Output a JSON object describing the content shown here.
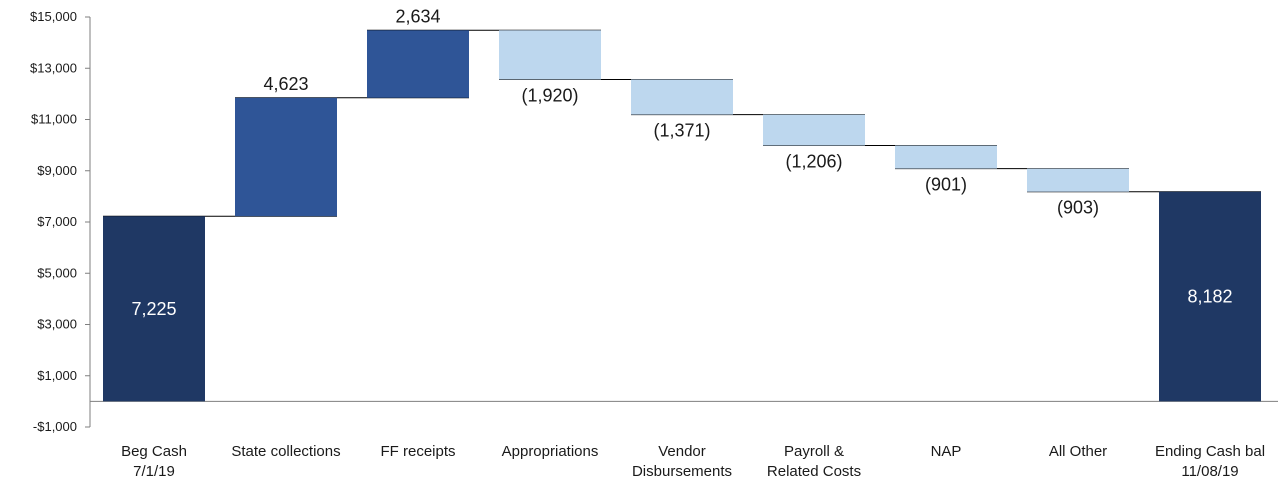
{
  "chart_data": {
    "type": "waterfall",
    "title": "",
    "ylim": [
      -1000,
      15000
    ],
    "y_ticks": [
      -1000,
      1000,
      3000,
      5000,
      7000,
      9000,
      11000,
      13000,
      15000
    ],
    "y_tick_labels": [
      "-$1,000",
      "$1,000",
      "$3,000",
      "$5,000",
      "$7,000",
      "$9,000",
      "$11,000",
      "$13,000",
      "$15,000"
    ],
    "categories": [
      [
        "Beg Cash",
        "7/1/19"
      ],
      [
        "State collections"
      ],
      [
        "FF receipts"
      ],
      [
        "Appropriations"
      ],
      [
        "Vendor",
        "Disbursements"
      ],
      [
        "Payroll &",
        "Related Costs"
      ],
      [
        "NAP"
      ],
      [
        "All Other"
      ],
      [
        "Ending Cash bal",
        "11/08/19"
      ]
    ],
    "steps": [
      {
        "kind": "total",
        "value": 7225,
        "label": "7,225"
      },
      {
        "kind": "increase",
        "value": 4623,
        "label": "4,623"
      },
      {
        "kind": "increase",
        "value": 2634,
        "label": "2,634"
      },
      {
        "kind": "decrease",
        "value": -1920,
        "label": "(1,920)"
      },
      {
        "kind": "decrease",
        "value": -1371,
        "label": "(1,371)"
      },
      {
        "kind": "decrease",
        "value": -1206,
        "label": "(1,206)"
      },
      {
        "kind": "decrease",
        "value": -901,
        "label": "(901)"
      },
      {
        "kind": "decrease",
        "value": -903,
        "label": "(903)"
      },
      {
        "kind": "total",
        "value": 8182,
        "label": "8,182"
      }
    ],
    "colors": {
      "total": "#1f3864",
      "increase": "#2f5597",
      "decrease": "#bdd7ee",
      "axis": "#7f7f7f",
      "connector": "#000000"
    },
    "grid": false,
    "legend": "none"
  }
}
